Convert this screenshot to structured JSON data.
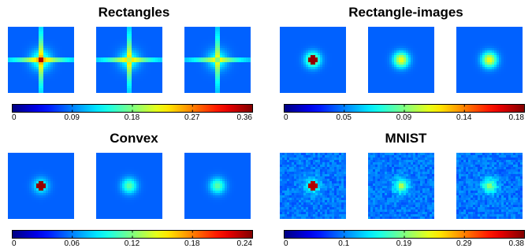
{
  "panels": [
    {
      "title": "Rectangles",
      "colorbar": {
        "ticks": [
          "0",
          "0.09",
          "0.18",
          "0.27",
          "0.36"
        ]
      },
      "tiles": [
        {
          "kind": "cross",
          "core": 0.95,
          "arm": 0.55,
          "halo": 0.25
        },
        {
          "kind": "cross",
          "core": 0.55,
          "arm": 0.5,
          "halo": 0.2
        },
        {
          "kind": "cross",
          "core": 0.5,
          "arm": 0.45,
          "halo": 0.2
        }
      ]
    },
    {
      "title": "Rectangle-images",
      "colorbar": {
        "ticks": [
          "0",
          "0.05",
          "0.09",
          "0.14",
          "0.18"
        ]
      },
      "tiles": [
        {
          "kind": "spot",
          "core": 0.98,
          "ring": true,
          "halo": 0.35
        },
        {
          "kind": "spot",
          "core": 0.6,
          "ring": false,
          "halo": 0.4
        },
        {
          "kind": "spot",
          "core": 0.55,
          "ring": false,
          "halo": 0.4
        }
      ]
    },
    {
      "title": "Convex",
      "colorbar": {
        "ticks": [
          "0",
          "0.06",
          "0.12",
          "0.18",
          "0.24"
        ]
      },
      "tiles": [
        {
          "kind": "spot",
          "core": 0.98,
          "ring": true,
          "halo": 0.2
        },
        {
          "kind": "spot",
          "core": 0.45,
          "ring": false,
          "halo": 0.25
        },
        {
          "kind": "spot",
          "core": 0.35,
          "ring": false,
          "halo": 0.25
        }
      ]
    },
    {
      "title": "MNIST",
      "colorbar": {
        "ticks": [
          "0",
          "0.1",
          "0.19",
          "0.29",
          "0.38"
        ]
      },
      "tiles": [
        {
          "kind": "noisy",
          "core": 0.95,
          "ring": true,
          "halo": 0.2
        },
        {
          "kind": "noisy",
          "core": 0.6,
          "ring": false,
          "halo": 0.25
        },
        {
          "kind": "noisy",
          "core": 0.55,
          "ring": false,
          "halo": 0.25
        }
      ]
    }
  ]
}
